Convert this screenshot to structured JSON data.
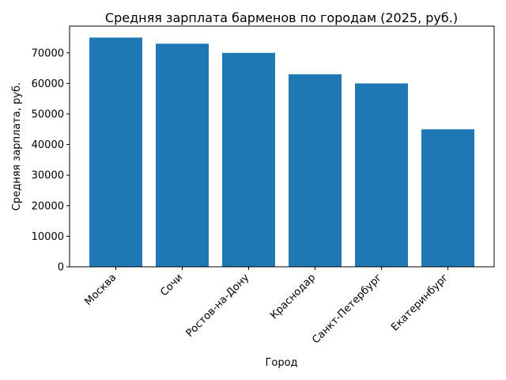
{
  "chart_data": {
    "type": "bar",
    "title": "Средняя зарплата барменов по городам (2025, руб.)",
    "xlabel": "Город",
    "ylabel": "Средняя зарплата, руб.",
    "categories": [
      "Москва",
      "Сочи",
      "Ростов-на-Дону",
      "Краснодар",
      "Санкт-Петербург",
      "Екатеринбург"
    ],
    "values": [
      75000,
      73000,
      70000,
      63000,
      60000,
      45000
    ],
    "ylim": [
      0,
      78750
    ],
    "yticks": [
      0,
      10000,
      20000,
      30000,
      40000,
      50000,
      60000,
      70000
    ],
    "bar_color": "#1f77b4",
    "grid": false,
    "legend": "none"
  }
}
